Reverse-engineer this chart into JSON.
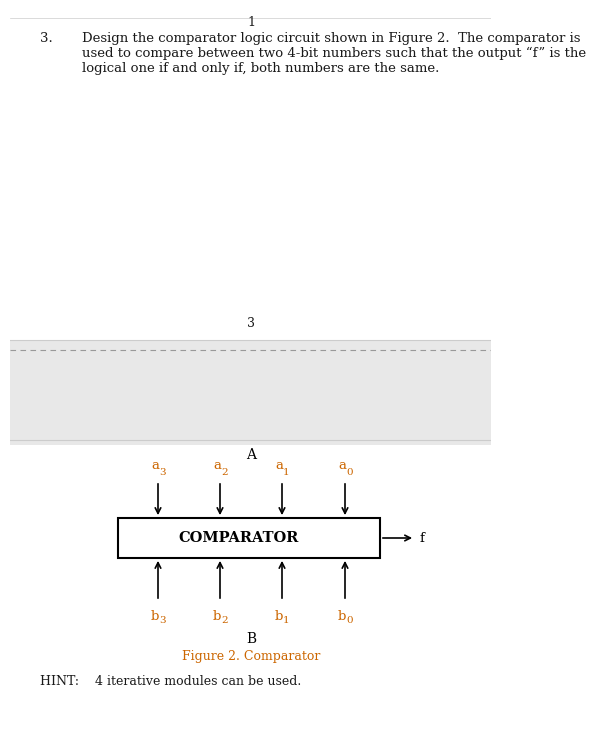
{
  "title_number": "3.",
  "page_number_top": "1",
  "page_number_mid": "3",
  "box_label": "COMPARATOR",
  "output_label": "f",
  "A_label": "A",
  "B_label": "B",
  "fig_caption": "Figure 2. Comparator",
  "hint_text": "HINT:    4 iterative modules can be used.",
  "problem_line1": "Design the comparator logic circuit shown in Figure 2.  The comparator is",
  "problem_line2": "used to compare between two 4-bit numbers such that the output “f” is the",
  "problem_line3": "logical one if and only if, both numbers are the same.",
  "top_inputs": [
    {
      "label": "a",
      "subscript": "3"
    },
    {
      "label": "a",
      "subscript": "2"
    },
    {
      "label": "a",
      "subscript": "1"
    },
    {
      "label": "a",
      "subscript": "0"
    }
  ],
  "bottom_inputs": [
    {
      "label": "b",
      "subscript": "3"
    },
    {
      "label": "b",
      "subscript": "2"
    },
    {
      "label": "b",
      "subscript": "1"
    },
    {
      "label": "b",
      "subscript": "0"
    }
  ],
  "text_color": "#1a1a1a",
  "orange_color": "#cc6600",
  "gray_color": "#e8e8e8",
  "dashed_color": "#999999",
  "separator_color": "#cccccc",
  "white": "#ffffff",
  "black": "#000000",
  "fig_caption_color": "#cc6600",
  "title_fs": 9.5,
  "label_fs": 9,
  "comparator_fs": 10.5,
  "hint_fs": 9,
  "caption_fs": 9
}
